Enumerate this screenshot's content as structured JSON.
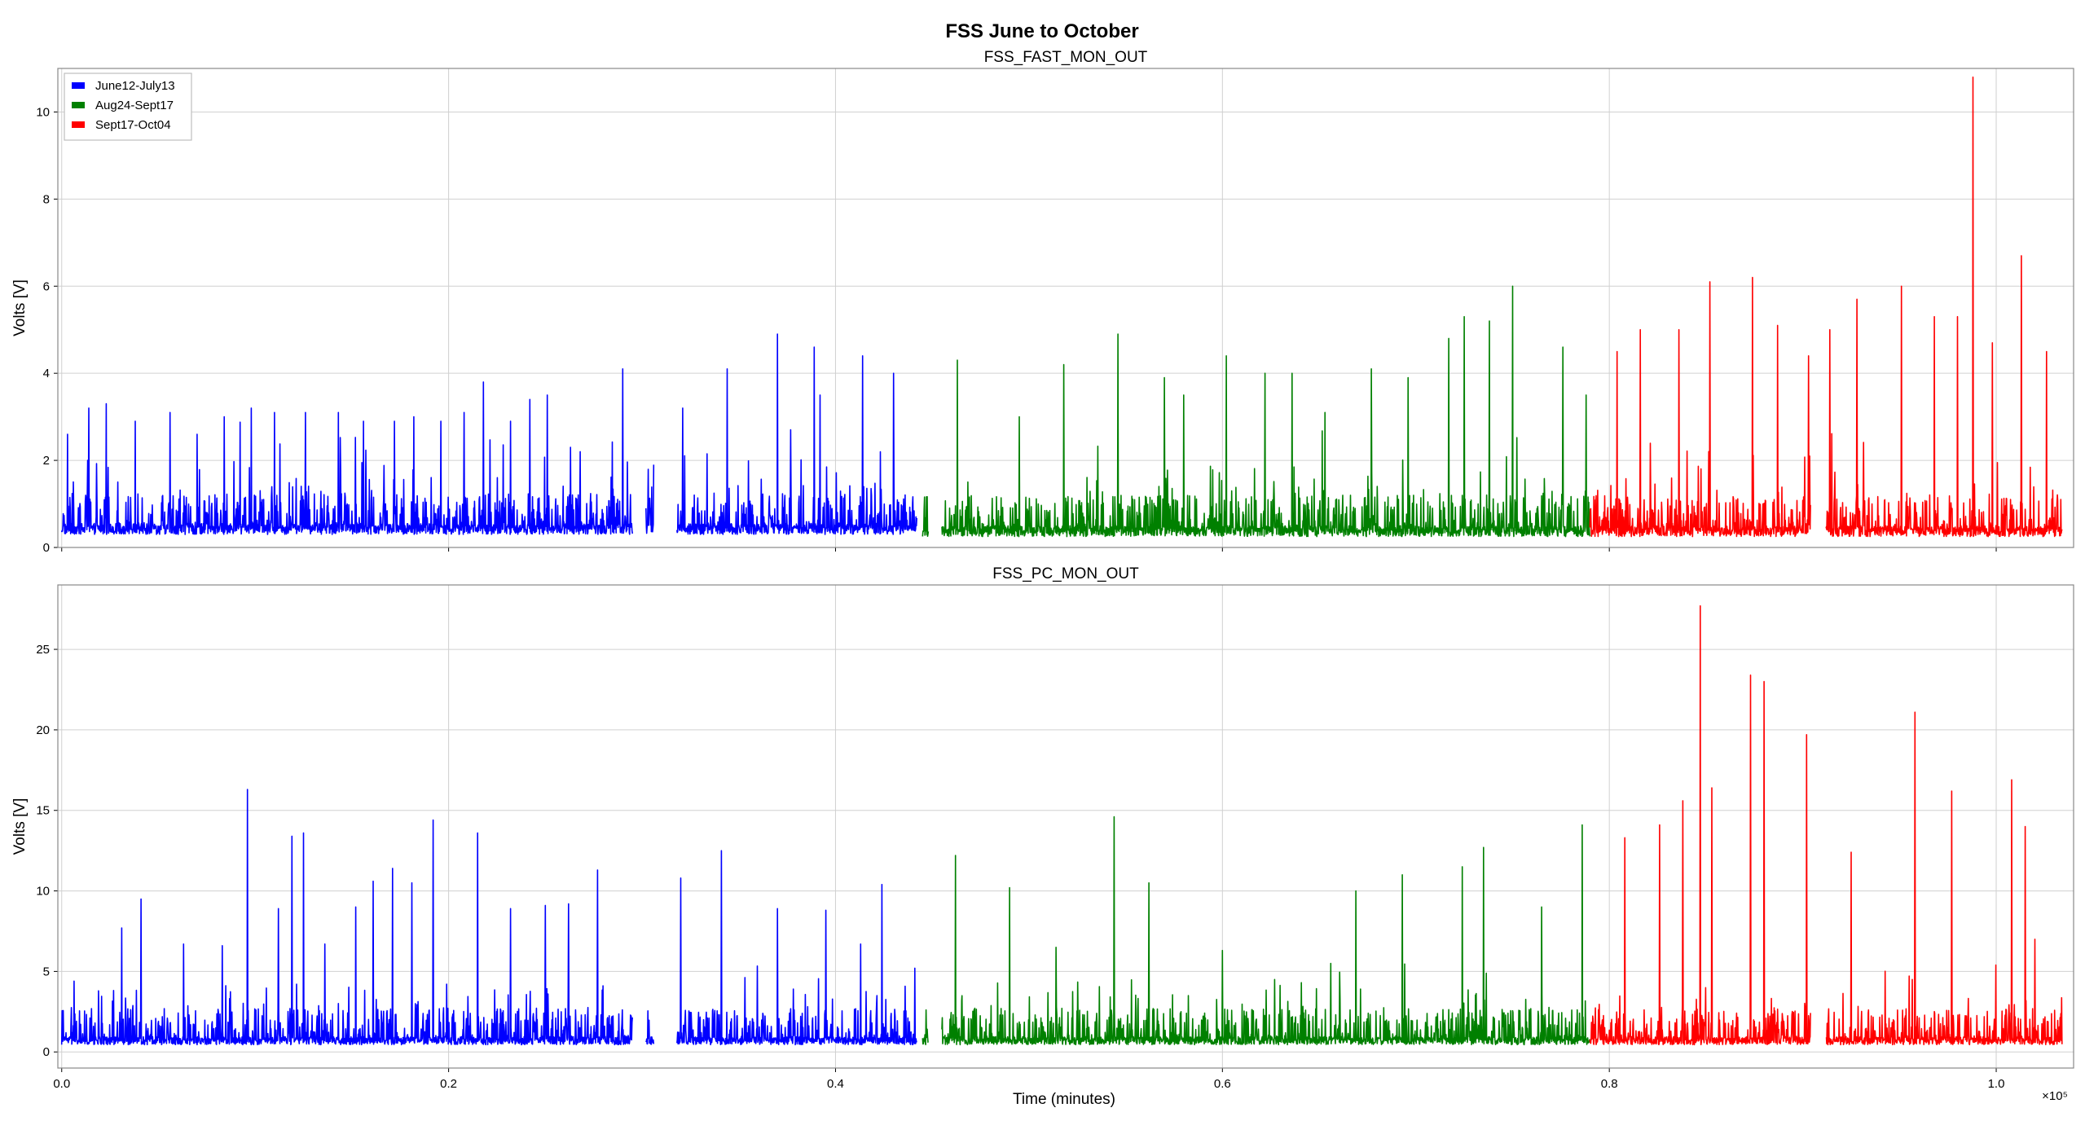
{
  "suptitle": "FSS June to October",
  "xlabel": "Time (minutes)",
  "x_offset_label": "×10⁵",
  "x_ticks": [
    "0.0",
    "0.2",
    "0.4",
    "0.6",
    "0.8",
    "1.0"
  ],
  "legend": [
    {
      "label": "June12-July13",
      "color": "#0000ff"
    },
    {
      "label": "Aug24-Sept17",
      "color": "#008000"
    },
    {
      "label": "Sept17-Oct04",
      "color": "#ff0000"
    }
  ],
  "chart_data": [
    {
      "type": "line",
      "title": "FSS_FAST_MON_OUT",
      "xlabel": "",
      "ylabel": "Volts [V]",
      "xlim": [
        -200,
        104000
      ],
      "ylim": [
        0,
        11
      ],
      "y_ticks": [
        "0",
        "2",
        "4",
        "6",
        "8",
        "10"
      ],
      "grid": true,
      "legend_position": "top-left",
      "series": [
        {
          "name": "June12-July13",
          "color": "#0000ff",
          "segments": [
            [
              0,
              29500
            ],
            [
              30200,
              30600
            ],
            [
              31800,
              44200
            ]
          ],
          "baseline": 0.35,
          "peaks": [
            [
              300,
              2.6
            ],
            [
              1400,
              3.2
            ],
            [
              2300,
              3.3
            ],
            [
              3800,
              2.9
            ],
            [
              5600,
              3.1
            ],
            [
              7000,
              2.6
            ],
            [
              8400,
              3.0
            ],
            [
              9800,
              3.2
            ],
            [
              11000,
              3.1
            ],
            [
              12600,
              3.1
            ],
            [
              14300,
              3.1
            ],
            [
              15600,
              2.9
            ],
            [
              17200,
              2.9
            ],
            [
              18200,
              3.0
            ],
            [
              19600,
              2.9
            ],
            [
              20800,
              3.1
            ],
            [
              21800,
              3.8
            ],
            [
              23200,
              2.9
            ],
            [
              24200,
              3.4
            ],
            [
              25100,
              3.5
            ],
            [
              26300,
              2.3
            ],
            [
              26800,
              2.2
            ],
            [
              29000,
              4.1
            ],
            [
              30600,
              1.9
            ],
            [
              32100,
              3.2
            ],
            [
              34400,
              4.1
            ],
            [
              37000,
              4.9
            ],
            [
              38900,
              4.6
            ],
            [
              39200,
              3.5
            ],
            [
              41400,
              4.4
            ],
            [
              43000,
              4.0
            ]
          ]
        },
        {
          "name": "Aug24-Sept17",
          "color": "#008000",
          "segments": [
            [
              44500,
              44800
            ],
            [
              45500,
              79000
            ]
          ],
          "baseline": 0.3,
          "peaks": [
            [
              46300,
              4.3
            ],
            [
              49500,
              3.0
            ],
            [
              51800,
              4.2
            ],
            [
              54600,
              4.9
            ],
            [
              57000,
              3.9
            ],
            [
              58000,
              3.5
            ],
            [
              60200,
              4.4
            ],
            [
              62200,
              4.0
            ],
            [
              63600,
              4.0
            ],
            [
              65300,
              3.1
            ],
            [
              67700,
              4.1
            ],
            [
              69600,
              3.9
            ],
            [
              71700,
              4.8
            ],
            [
              72500,
              5.3
            ],
            [
              73800,
              5.2
            ],
            [
              75000,
              6.0
            ],
            [
              77600,
              4.6
            ],
            [
              78800,
              3.5
            ]
          ]
        },
        {
          "name": "Sept17-Oct04",
          "color": "#ff0000",
          "segments": [
            [
              79000,
              90400
            ],
            [
              91200,
              103400
            ]
          ],
          "baseline": 0.3,
          "peaks": [
            [
              80400,
              4.5
            ],
            [
              81600,
              5.0
            ],
            [
              83600,
              5.0
            ],
            [
              85200,
              6.1
            ],
            [
              87400,
              6.2
            ],
            [
              88700,
              5.1
            ],
            [
              90300,
              4.4
            ],
            [
              91400,
              5.0
            ],
            [
              92800,
              5.7
            ],
            [
              95100,
              6.0
            ],
            [
              96800,
              5.3
            ],
            [
              98000,
              5.3
            ],
            [
              98800,
              10.8
            ],
            [
              99800,
              4.7
            ],
            [
              101300,
              6.7
            ],
            [
              102600,
              4.5
            ]
          ]
        }
      ]
    },
    {
      "type": "line",
      "title": "FSS_PC_MON_OUT",
      "xlabel": "Time (minutes)",
      "ylabel": "Volts [V]",
      "xlim": [
        -200,
        104000
      ],
      "ylim": [
        -1,
        29
      ],
      "y_ticks": [
        "0",
        "5",
        "10",
        "15",
        "20",
        "25"
      ],
      "grid": true,
      "series": [
        {
          "name": "June12-July13",
          "color": "#0000ff",
          "segments": [
            [
              0,
              29500
            ],
            [
              30200,
              30600
            ],
            [
              31800,
              44200
            ]
          ],
          "baseline": 0.5,
          "peaks": [
            [
              150,
              5.8
            ],
            [
              3100,
              7.7
            ],
            [
              4100,
              9.5
            ],
            [
              6300,
              6.7
            ],
            [
              8300,
              6.6
            ],
            [
              9600,
              16.3
            ],
            [
              11200,
              8.9
            ],
            [
              11900,
              13.4
            ],
            [
              12500,
              13.6
            ],
            [
              13600,
              6.7
            ],
            [
              15200,
              9.0
            ],
            [
              16100,
              10.6
            ],
            [
              17100,
              11.4
            ],
            [
              18100,
              10.5
            ],
            [
              19200,
              14.4
            ],
            [
              21500,
              13.6
            ],
            [
              23200,
              8.9
            ],
            [
              25000,
              9.1
            ],
            [
              26200,
              9.2
            ],
            [
              27700,
              11.3
            ],
            [
              32000,
              10.8
            ],
            [
              34100,
              12.5
            ],
            [
              37000,
              8.9
            ],
            [
              39500,
              8.8
            ],
            [
              41300,
              6.7
            ],
            [
              42400,
              10.4
            ]
          ]
        },
        {
          "name": "Aug24-Sept17",
          "color": "#008000",
          "segments": [
            [
              44500,
              44800
            ],
            [
              45500,
              79000
            ]
          ],
          "baseline": 0.5,
          "peaks": [
            [
              46200,
              12.2
            ],
            [
              49000,
              10.2
            ],
            [
              51400,
              6.5
            ],
            [
              54400,
              14.6
            ],
            [
              56200,
              10.5
            ],
            [
              60000,
              6.3
            ],
            [
              62700,
              4.5
            ],
            [
              65600,
              5.5
            ],
            [
              66900,
              10.0
            ],
            [
              69300,
              11.0
            ],
            [
              72400,
              11.5
            ],
            [
              73500,
              12.7
            ],
            [
              76500,
              9.0
            ],
            [
              78600,
              14.1
            ]
          ]
        },
        {
          "name": "Sept17-Oct04",
          "color": "#ff0000",
          "segments": [
            [
              79000,
              90400
            ],
            [
              91200,
              103400
            ]
          ],
          "baseline": 0.5,
          "peaks": [
            [
              80800,
              13.3
            ],
            [
              82600,
              14.1
            ],
            [
              83800,
              15.6
            ],
            [
              84700,
              27.7
            ],
            [
              85300,
              16.4
            ],
            [
              87300,
              23.4
            ],
            [
              88000,
              23.0
            ],
            [
              90200,
              19.7
            ],
            [
              92500,
              12.4
            ],
            [
              95800,
              21.1
            ],
            [
              97700,
              16.2
            ],
            [
              100800,
              16.9
            ],
            [
              101500,
              14.0
            ],
            [
              102000,
              7.0
            ]
          ]
        }
      ]
    }
  ]
}
